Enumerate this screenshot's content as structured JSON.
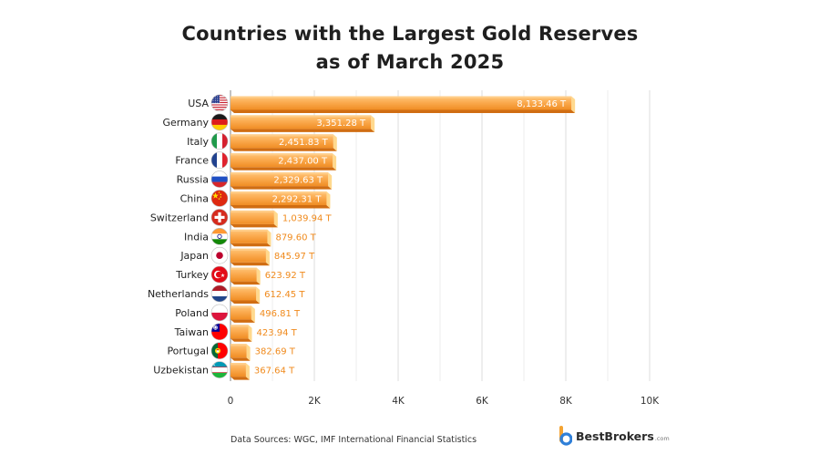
{
  "title_lines": [
    "Countries with the Largest Gold Reserves",
    "as of March 2025"
  ],
  "source": "Data Sources: WGC, IMF International Financial Statistics",
  "logo": {
    "name": "BestBrokers",
    "domain": ".com"
  },
  "colors": {
    "bar_light": "#fdb764",
    "bar_mid": "#f79a34",
    "bar_dark": "#d06d12",
    "bar_end": "#ffd98e",
    "label_outside": "#f08a1c",
    "label_inside": "#ffffff",
    "grid": "#dddddd"
  },
  "chart_data": {
    "type": "bar",
    "orientation": "horizontal",
    "title": "Countries with the Largest Gold Reserves as of March 2025",
    "xlabel": "",
    "ylabel": "",
    "xlim": [
      0,
      10000
    ],
    "xticks": [
      0,
      2000,
      4000,
      6000,
      8000,
      10000
    ],
    "xtick_labels": [
      "0",
      "2K",
      "4K",
      "6K",
      "8K",
      "10K"
    ],
    "grid": true,
    "categories": [
      "USA",
      "Germany",
      "Italy",
      "France",
      "Russia",
      "China",
      "Switzerland",
      "India",
      "Japan",
      "Turkey",
      "Netherlands",
      "Poland",
      "Taiwan",
      "Portugal",
      "Uzbekistan"
    ],
    "values": [
      8133.46,
      3351.28,
      2451.83,
      2437.0,
      2329.63,
      2292.31,
      1039.94,
      879.6,
      845.97,
      623.92,
      612.45,
      496.81,
      423.94,
      382.69,
      367.64
    ],
    "data_labels": [
      "8,133.46 T",
      "3,351.28 T",
      "2,451.83 T",
      "2,437.00 T",
      "2,329.63 T",
      "2,292.31 T",
      "1,039.94 T",
      "879.60 T",
      "845.97 T",
      "623.92 T",
      "612.45 T",
      "496.81 T",
      "423.94 T",
      "382.69 T",
      "367.64 T"
    ],
    "flag_icons": [
      "flag-usa-icon",
      "flag-germany-icon",
      "flag-italy-icon",
      "flag-france-icon",
      "flag-russia-icon",
      "flag-china-icon",
      "flag-switzerland-icon",
      "flag-india-icon",
      "flag-japan-icon",
      "flag-turkey-icon",
      "flag-netherlands-icon",
      "flag-poland-icon",
      "flag-taiwan-icon",
      "flag-portugal-icon",
      "flag-uzbekistan-icon"
    ]
  }
}
